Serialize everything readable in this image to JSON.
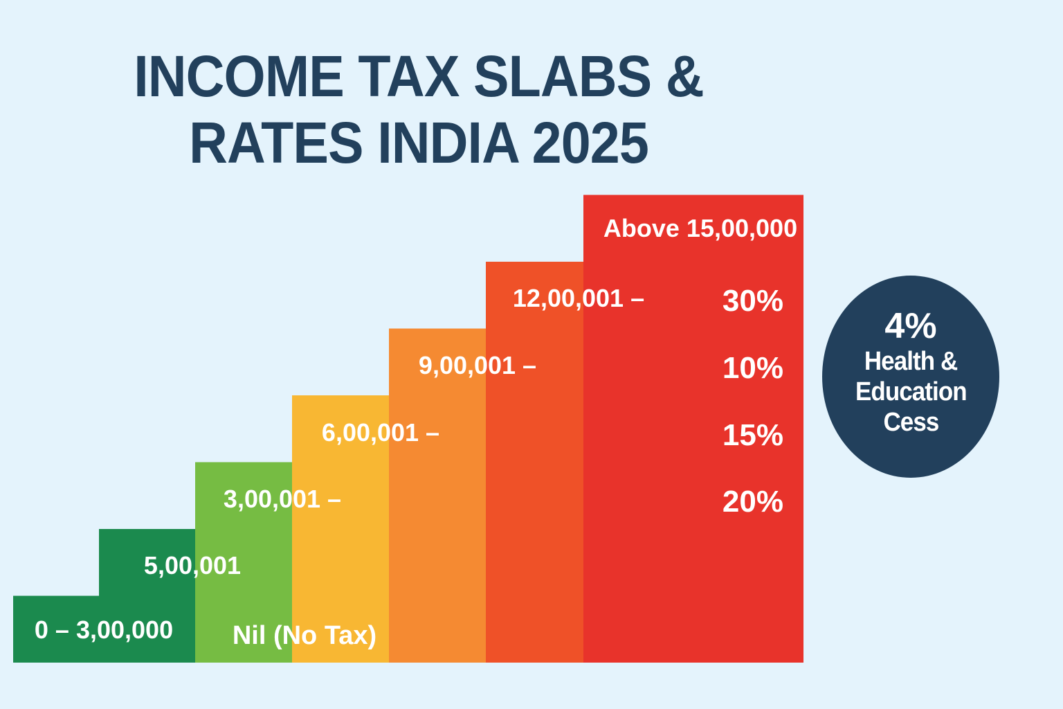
{
  "title": {
    "line1": "INCOME TAX SLABS &",
    "line2": "RATES INDIA 2025"
  },
  "chart_data": {
    "type": "bar",
    "title": "INCOME TAX SLABS & RATES INDIA 2025",
    "style": "staircase (stepped bars rising left to right)",
    "categories": [
      "0 – 3,00,000",
      "5,00,001",
      "3,00,001 –",
      "6,00,001 –",
      "9,00,001 –",
      "12,00,001 –",
      "Above 15,00,000"
    ],
    "step_levels": [
      1,
      2,
      3,
      4,
      5,
      6,
      7
    ],
    "colors": [
      "#1b8a4e",
      "#1b8a4e",
      "#76bc43",
      "#f8b733",
      "#f58a32",
      "#ef5128",
      "#e8332b"
    ],
    "slab_labels": [
      {
        "text": "0 – 3,00,000",
        "step": 1
      },
      {
        "text": "5,00,001",
        "step": 2
      },
      {
        "text": "3,00,001 –",
        "step": 3
      },
      {
        "text": "6,00,001 –",
        "step": 4
      },
      {
        "text": "9,00,001 –",
        "step": 5
      },
      {
        "text": "12,00,001 –",
        "step": 6
      },
      {
        "text": "Above 15,00,000",
        "step": 7
      }
    ],
    "rate_labels": [
      "30%",
      "10%",
      "15%",
      "20%"
    ],
    "nil_label": "Nil (No Tax)",
    "xlabel": "",
    "ylabel": "",
    "grid": false,
    "legend": "none"
  },
  "cess_badge": {
    "percent": "4%",
    "line1": "Health &",
    "line2": "Education",
    "line3": "Cess",
    "color": "#22405c"
  }
}
